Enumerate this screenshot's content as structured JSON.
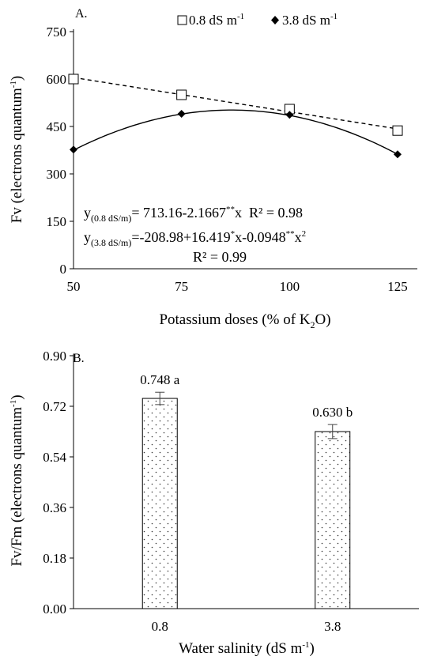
{
  "chart_data": [
    {
      "type": "line",
      "panel_label": "A.",
      "xlabel_pre": "Potassium doses (% of K",
      "xlabel_sub": "2",
      "xlabel_post": "O)",
      "ylabel_pre": "Fv (electrons quantum",
      "ylabel_sup": "-1",
      "ylabel_post": ")",
      "xlim": [
        50,
        125
      ],
      "ylim": [
        0,
        750
      ],
      "xticks": [
        "50",
        "75",
        "100",
        "125"
      ],
      "yticks": [
        "0",
        "150",
        "300",
        "450",
        "600",
        "750"
      ],
      "x": [
        50,
        75,
        100,
        125
      ],
      "series": [
        {
          "name": "0.8 dS m",
          "name_sup": "-1",
          "marker": "open-square",
          "line": "dashed",
          "values": [
            600,
            550,
            505,
            437
          ],
          "fit": {
            "a": 713.16,
            "b": -2.1667,
            "c": 0
          }
        },
        {
          "name": "3.8 dS m",
          "name_sup": "-1",
          "marker": "filled-diamond",
          "line": "solid",
          "values": [
            377,
            490,
            487,
            362
          ],
          "fit": {
            "a": -208.98,
            "b": 16.419,
            "c": -0.0948
          }
        }
      ],
      "equations": [
        {
          "y": "y",
          "sub": "(0.8 dS/m)",
          "body": "= 713.16-2.1667",
          "sup1": "**",
          "tail": "x  R² = 0.98"
        },
        {
          "y": "y",
          "sub": "(3.8 dS/m)",
          "body": "=-208.98+16.419",
          "sup1": "*",
          "mid": "x-0.0948",
          "sup2": "**",
          "tail": "x",
          "sup3": "2"
        }
      ],
      "r2_second": "R² = 0.99",
      "grid": false,
      "legend_position": "top"
    },
    {
      "type": "bar",
      "panel_label": "B.",
      "xlabel_pre": "Water salinity (dS m",
      "xlabel_sup": "-1",
      "xlabel_post": ")",
      "ylabel_pre": "Fv/Fm (electrons quantum",
      "ylabel_sup": "-1",
      "ylabel_post": ")",
      "ylim": [
        0,
        0.9
      ],
      "yticks": [
        "0.00",
        "0.18",
        "0.36",
        "0.54",
        "0.72",
        "0.90"
      ],
      "categories": [
        "0.8",
        "3.8"
      ],
      "values": [
        0.748,
        0.63
      ],
      "errors": [
        0.022,
        0.025
      ],
      "value_labels": [
        "0.748 a",
        "0.630 b"
      ],
      "bar_fill": "dotted",
      "grid": false
    }
  ]
}
